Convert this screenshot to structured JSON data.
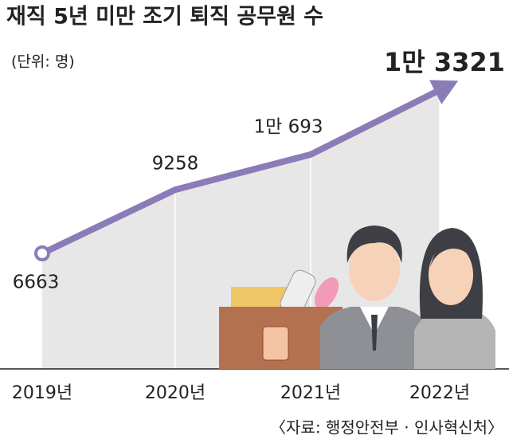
{
  "chart_data": {
    "type": "line",
    "title": "재직 5년 미만 조기 퇴직 공무원 수",
    "subtitle": "(단위: 명)",
    "source": "〈자료: 행정안전부 · 인사혁신처〉",
    "categories": [
      "2019년",
      "2020년",
      "2021년",
      "2022년"
    ],
    "values": [
      6663,
      9258,
      10693,
      13321
    ],
    "value_labels": [
      "6663",
      "9258",
      "1만 693",
      "1만 3321"
    ],
    "color": "#8b7cb8",
    "area_color": "#e7e7e8"
  }
}
